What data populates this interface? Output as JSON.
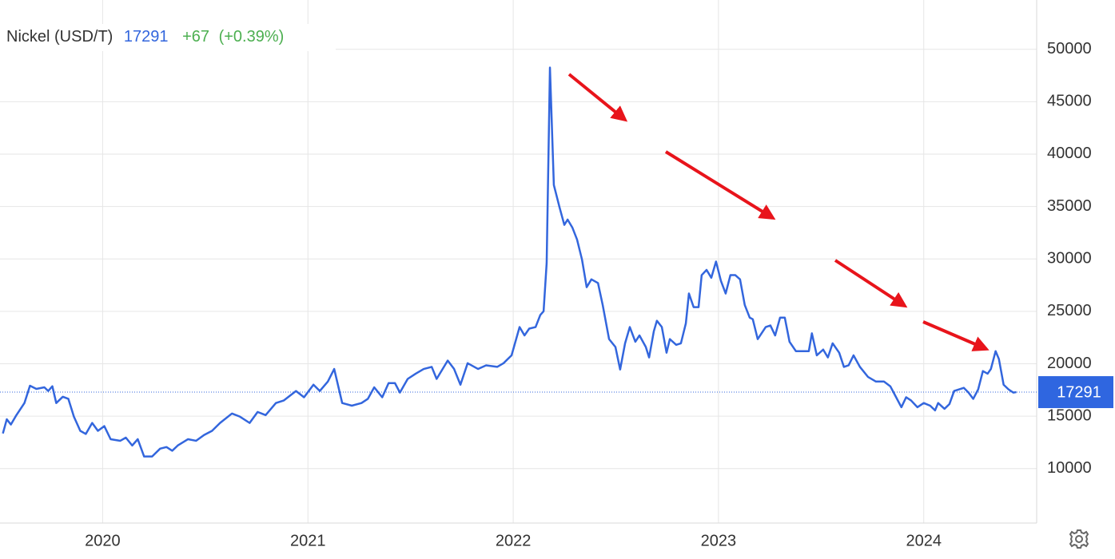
{
  "chart_data": {
    "type": "line",
    "title": "Nickel (USD/T)",
    "change": {
      "value": 67,
      "label": "+67"
    },
    "change_pct": {
      "value": 0.39,
      "label": "(+0.39%)"
    },
    "x": [
      2019.514,
      2019.533,
      2019.553,
      2019.58,
      2019.619,
      2019.646,
      2019.677,
      2019.716,
      2019.735,
      2019.755,
      2019.774,
      2019.806,
      2019.833,
      2019.86,
      2019.891,
      2019.918,
      2019.949,
      2019.977,
      2020.008,
      2020.039,
      2020.086,
      2020.113,
      2020.144,
      2020.171,
      2020.202,
      2020.241,
      2020.28,
      2020.311,
      2020.339,
      2020.366,
      2020.416,
      2020.455,
      2020.494,
      2020.533,
      2020.572,
      2020.63,
      2020.669,
      2020.716,
      2020.755,
      2020.794,
      2020.844,
      2020.883,
      2020.942,
      2020.981,
      2021.027,
      2021.058,
      2021.097,
      2021.128,
      2021.167,
      2021.214,
      2021.261,
      2021.292,
      2021.323,
      2021.362,
      2021.393,
      2021.424,
      2021.448,
      2021.486,
      2021.525,
      2021.564,
      2021.603,
      2021.627,
      2021.681,
      2021.712,
      2021.743,
      2021.778,
      2021.829,
      2021.868,
      2021.922,
      2021.953,
      2021.992,
      2022.031,
      2022.055,
      2022.078,
      2022.109,
      2022.132,
      2022.148,
      2022.163,
      2022.179,
      2022.198,
      2022.226,
      2022.249,
      2022.265,
      2022.288,
      2022.311,
      2022.335,
      2022.358,
      2022.381,
      2022.413,
      2022.436,
      2022.467,
      2022.498,
      2022.521,
      2022.545,
      2022.568,
      2022.595,
      2022.615,
      2022.646,
      2022.662,
      2022.685,
      2022.7,
      2022.724,
      2022.747,
      2022.763,
      2022.794,
      2022.817,
      2022.841,
      2022.856,
      2022.879,
      2022.903,
      2022.918,
      2022.942,
      2022.965,
      2022.988,
      2023.012,
      2023.035,
      2023.058,
      2023.082,
      2023.105,
      2023.128,
      2023.152,
      2023.167,
      2023.191,
      2023.23,
      2023.253,
      2023.276,
      2023.3,
      2023.323,
      2023.346,
      2023.377,
      2023.409,
      2023.44,
      2023.455,
      2023.479,
      2023.51,
      2023.533,
      2023.556,
      2023.588,
      2023.611,
      2023.634,
      2023.658,
      2023.689,
      2023.728,
      2023.767,
      2023.806,
      2023.837,
      2023.86,
      2023.891,
      2023.914,
      2023.938,
      2023.969,
      2024,
      2024.031,
      2024.055,
      2024.07,
      2024.101,
      2024.125,
      2024.148,
      2024.171,
      2024.195,
      2024.218,
      2024.241,
      2024.265,
      2024.288,
      2024.311,
      2024.327,
      2024.35,
      2024.366,
      2024.389,
      2024.413,
      2024.436,
      2024.451
    ],
    "series": [
      {
        "name": "Nickel (USD/T)",
        "color": "#3366dd",
        "values": [
          13350,
          14700,
          14200,
          15100,
          16250,
          17900,
          17600,
          17750,
          17400,
          17850,
          16250,
          16850,
          16650,
          14950,
          13600,
          13300,
          14350,
          13600,
          14050,
          12800,
          12650,
          12950,
          12200,
          12800,
          11150,
          11150,
          11900,
          12050,
          11700,
          12200,
          12800,
          12650,
          13200,
          13600,
          14350,
          15250,
          14950,
          14350,
          15400,
          15100,
          16250,
          16500,
          17400,
          16800,
          18000,
          17400,
          18300,
          19500,
          16250,
          16000,
          16250,
          16650,
          17750,
          16800,
          18150,
          18150,
          17250,
          18550,
          19050,
          19500,
          19700,
          18550,
          20300,
          19500,
          18000,
          20050,
          19500,
          19850,
          19700,
          20050,
          20800,
          23500,
          22700,
          23350,
          23500,
          24650,
          25000,
          29600,
          48250,
          37050,
          34900,
          33250,
          33750,
          33000,
          31850,
          29950,
          27300,
          28050,
          27700,
          25600,
          22350,
          21600,
          19450,
          21950,
          23500,
          22100,
          22700,
          21600,
          20600,
          23100,
          24100,
          23500,
          21050,
          22350,
          21800,
          21950,
          23850,
          26700,
          25400,
          25400,
          28450,
          28950,
          28200,
          29750,
          27900,
          26700,
          28450,
          28450,
          28050,
          25600,
          24400,
          24250,
          22350,
          23500,
          23650,
          22700,
          24400,
          24400,
          22100,
          21200,
          21200,
          21200,
          22900,
          20800,
          21350,
          20600,
          21950,
          21050,
          19700,
          19850,
          20800,
          19700,
          18750,
          18300,
          18300,
          17850,
          17000,
          15850,
          16800,
          16500,
          15850,
          16250,
          16000,
          15550,
          16250,
          15700,
          16150,
          17400,
          17550,
          17700,
          17250,
          16650,
          17550,
          19300,
          19050,
          19500,
          21200,
          20450,
          18000,
          17550,
          17250,
          17291
        ]
      }
    ],
    "xlim": [
      2019.5,
      2024.55
    ],
    "xticks": [
      2020,
      2021,
      2022,
      2023,
      2024
    ],
    "ylim": [
      4800,
      54700
    ],
    "yticks": [
      10000,
      15000,
      20000,
      25000,
      30000,
      35000,
      40000,
      45000,
      50000
    ],
    "grid": true,
    "change_color": "#4caf50",
    "tag_color": "#2f66e0"
  }
}
